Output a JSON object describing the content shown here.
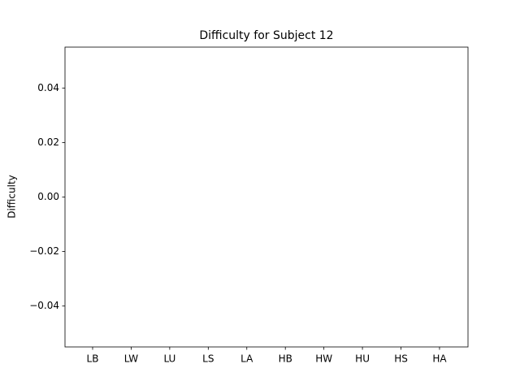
{
  "chart_data": {
    "type": "bar",
    "title": "Difficulty for Subject 12",
    "ylabel": "Difficulty",
    "categories": [
      "LB",
      "LW",
      "LU",
      "LS",
      "LA",
      "HB",
      "HW",
      "HU",
      "HS",
      "HA"
    ],
    "values": [
      0,
      0,
      0,
      0,
      0,
      0,
      0,
      0,
      0,
      0
    ],
    "color": "#1f77b4",
    "ylim": [
      -0.055,
      0.055
    ],
    "yticks": [
      {
        "value": -0.04,
        "label": "−0.04"
      },
      {
        "value": -0.02,
        "label": "−0.02"
      },
      {
        "value": 0,
        "label": "0.00"
      },
      0.02,
      0.04
    ],
    "grid": false
  }
}
